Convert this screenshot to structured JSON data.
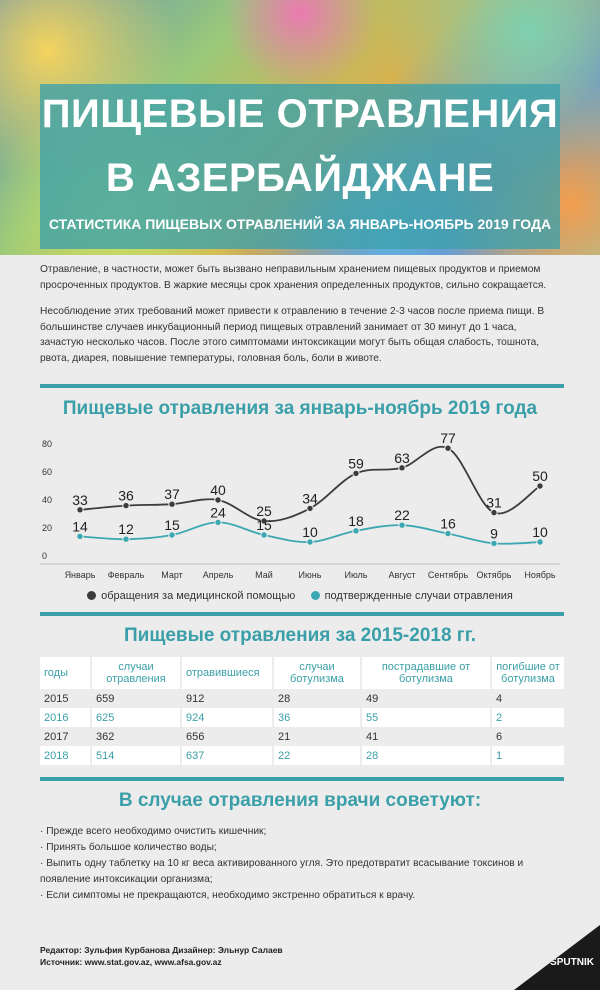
{
  "header": {
    "title_line1": "ПИЩЕВЫЕ ОТРАВЛЕНИЯ",
    "title_line2": "В АЗЕРБАЙДЖАНЕ",
    "subtitle": "СТАТИСТИКА ПИЩЕВЫХ ОТРАВЛЕНИЙ ЗА ЯНВАРЬ-НОЯБРЬ 2019 ГОДА"
  },
  "intro": {
    "p1": "Отравление, в частности, может быть вызвано неправильным хранением пищевых продуктов и приемом просроченных продуктов. В жаркие месяцы срок хранения определенных продуктов, сильно сокращается.",
    "p2": "Несоблюдение этих требований может привести к отравлению в течение 2-3 часов после приема пищи. В большинстве случаев инкубационный период пищевых отравлений занимает от 30 минут до 1 часа, зачастую несколько часов. После этого симптомами интоксикации могут быть общая слабость, тошнота, рвота, диарея, повышение температуры, головная боль, боли в животе."
  },
  "chart_data": {
    "type": "line",
    "title": "Пищевые отравления за январь-ноябрь 2019 года",
    "categories": [
      "Январь",
      "Февраль",
      "Март",
      "Апрель",
      "Май",
      "Июнь",
      "Июль",
      "Август",
      "Сентябрь",
      "Октябрь",
      "Ноябрь"
    ],
    "series": [
      {
        "name": "обращения за медицинской помощью",
        "color": "#3c3c3c",
        "values": [
          33,
          36,
          37,
          40,
          25,
          34,
          59,
          63,
          77,
          31,
          50
        ]
      },
      {
        "name": "подтвержденные случаи отравления",
        "color": "#3aa8b2",
        "values": [
          14,
          12,
          15,
          24,
          15,
          10,
          18,
          22,
          16,
          9,
          10
        ]
      }
    ],
    "ylim": [
      0,
      80
    ],
    "yticks": [
      0,
      20,
      40,
      60,
      80
    ],
    "legend": "bottom"
  },
  "table": {
    "title": "Пищевые отравления за 2015-2018 гг.",
    "headers": [
      "годы",
      "случаи отравления",
      "отравившиеся",
      "случаи ботулизма",
      "пострадавшие от ботулизма",
      "погибшие от ботулизма"
    ],
    "rows": [
      [
        "2015",
        "659",
        "912",
        "28",
        "49",
        "4"
      ],
      [
        "2016",
        "625",
        "924",
        "36",
        "55",
        "2"
      ],
      [
        "2017",
        "362",
        "656",
        "21",
        "41",
        "6"
      ],
      [
        "2018",
        "514",
        "637",
        "22",
        "28",
        "1"
      ]
    ]
  },
  "advice": {
    "title": "В случае отравления врачи советуют:",
    "items": [
      "· Прежде всего необходимо очистить кишечник;",
      "· Принять большое количество воды;",
      "· Выпить одну таблетку на 10 кг веса активированного угля. Это предотвратит всасывание токсинов и появление интоксикации организма;",
      "· Если симптомы не прекращаются, необходимо экстренно обратиться к врачу."
    ]
  },
  "footer": {
    "credits": "Редактор: Зульфия Курбанова  Дизайнер: Эльнур Салаев",
    "source": "Источник: www.stat.gov.az, www.afsa.gov.az",
    "logo": "SPUTNIK"
  },
  "colors": {
    "accent": "#3a9fa8",
    "dark": "#3c3c3c"
  }
}
